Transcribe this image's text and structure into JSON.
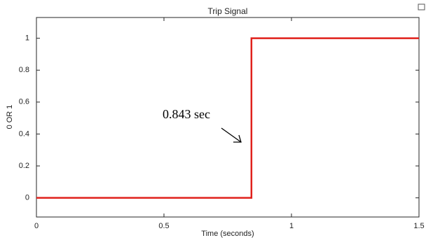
{
  "chart_data": {
    "type": "line",
    "title": "Trip Signal",
    "x_label": "Time (seconds)",
    "y_label": "0 OR 1",
    "x": [
      0,
      0.843,
      0.843,
      1.5
    ],
    "values": [
      0,
      0,
      1,
      1
    ],
    "color": "#e0201b",
    "xlim": [
      0,
      1.5
    ],
    "xticks": [
      0,
      0.5,
      1,
      1.5
    ],
    "ylim": [
      -0.12,
      1.13
    ],
    "yticks": [
      0,
      0.2,
      0.4,
      0.6,
      0.8,
      1
    ],
    "annotation": "0.843 sec"
  }
}
